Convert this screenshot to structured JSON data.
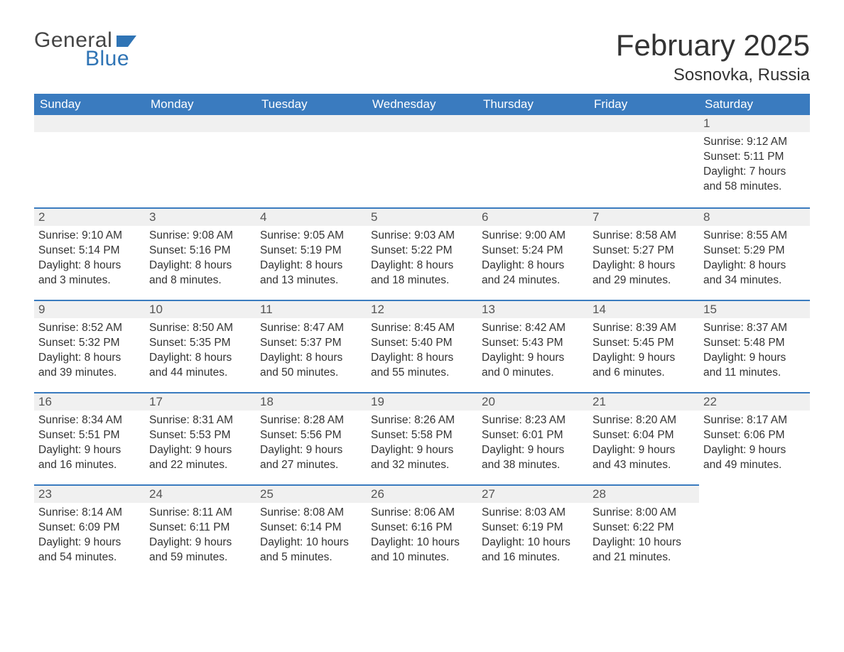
{
  "logo": {
    "text1": "General",
    "text2": "Blue",
    "flag_color": "#2f74b5"
  },
  "header": {
    "month_title": "February 2025",
    "location": "Sosnovka, Russia"
  },
  "style": {
    "header_bg": "#3a7bbf",
    "header_text": "#ffffff",
    "daynum_bg": "#f0f0f0",
    "daynum_border": "#3a7bbf",
    "body_text": "#333333",
    "title_fontsize": 42,
    "location_fontsize": 24,
    "weekday_fontsize": 17,
    "cell_fontsize": 15.5,
    "background": "#ffffff"
  },
  "weekdays": [
    "Sunday",
    "Monday",
    "Tuesday",
    "Wednesday",
    "Thursday",
    "Friday",
    "Saturday"
  ],
  "labels": {
    "sunrise": "Sunrise:",
    "sunset": "Sunset:",
    "daylight": "Daylight:"
  },
  "weeks": [
    [
      null,
      null,
      null,
      null,
      null,
      null,
      {
        "n": "1",
        "sunrise": "9:12 AM",
        "sunset": "5:11 PM",
        "daylight": "7 hours and 58 minutes."
      }
    ],
    [
      {
        "n": "2",
        "sunrise": "9:10 AM",
        "sunset": "5:14 PM",
        "daylight": "8 hours and 3 minutes."
      },
      {
        "n": "3",
        "sunrise": "9:08 AM",
        "sunset": "5:16 PM",
        "daylight": "8 hours and 8 minutes."
      },
      {
        "n": "4",
        "sunrise": "9:05 AM",
        "sunset": "5:19 PM",
        "daylight": "8 hours and 13 minutes."
      },
      {
        "n": "5",
        "sunrise": "9:03 AM",
        "sunset": "5:22 PM",
        "daylight": "8 hours and 18 minutes."
      },
      {
        "n": "6",
        "sunrise": "9:00 AM",
        "sunset": "5:24 PM",
        "daylight": "8 hours and 24 minutes."
      },
      {
        "n": "7",
        "sunrise": "8:58 AM",
        "sunset": "5:27 PM",
        "daylight": "8 hours and 29 minutes."
      },
      {
        "n": "8",
        "sunrise": "8:55 AM",
        "sunset": "5:29 PM",
        "daylight": "8 hours and 34 minutes."
      }
    ],
    [
      {
        "n": "9",
        "sunrise": "8:52 AM",
        "sunset": "5:32 PM",
        "daylight": "8 hours and 39 minutes."
      },
      {
        "n": "10",
        "sunrise": "8:50 AM",
        "sunset": "5:35 PM",
        "daylight": "8 hours and 44 minutes."
      },
      {
        "n": "11",
        "sunrise": "8:47 AM",
        "sunset": "5:37 PM",
        "daylight": "8 hours and 50 minutes."
      },
      {
        "n": "12",
        "sunrise": "8:45 AM",
        "sunset": "5:40 PM",
        "daylight": "8 hours and 55 minutes."
      },
      {
        "n": "13",
        "sunrise": "8:42 AM",
        "sunset": "5:43 PM",
        "daylight": "9 hours and 0 minutes."
      },
      {
        "n": "14",
        "sunrise": "8:39 AM",
        "sunset": "5:45 PM",
        "daylight": "9 hours and 6 minutes."
      },
      {
        "n": "15",
        "sunrise": "8:37 AM",
        "sunset": "5:48 PM",
        "daylight": "9 hours and 11 minutes."
      }
    ],
    [
      {
        "n": "16",
        "sunrise": "8:34 AM",
        "sunset": "5:51 PM",
        "daylight": "9 hours and 16 minutes."
      },
      {
        "n": "17",
        "sunrise": "8:31 AM",
        "sunset": "5:53 PM",
        "daylight": "9 hours and 22 minutes."
      },
      {
        "n": "18",
        "sunrise": "8:28 AM",
        "sunset": "5:56 PM",
        "daylight": "9 hours and 27 minutes."
      },
      {
        "n": "19",
        "sunrise": "8:26 AM",
        "sunset": "5:58 PM",
        "daylight": "9 hours and 32 minutes."
      },
      {
        "n": "20",
        "sunrise": "8:23 AM",
        "sunset": "6:01 PM",
        "daylight": "9 hours and 38 minutes."
      },
      {
        "n": "21",
        "sunrise": "8:20 AM",
        "sunset": "6:04 PM",
        "daylight": "9 hours and 43 minutes."
      },
      {
        "n": "22",
        "sunrise": "8:17 AM",
        "sunset": "6:06 PM",
        "daylight": "9 hours and 49 minutes."
      }
    ],
    [
      {
        "n": "23",
        "sunrise": "8:14 AM",
        "sunset": "6:09 PM",
        "daylight": "9 hours and 54 minutes."
      },
      {
        "n": "24",
        "sunrise": "8:11 AM",
        "sunset": "6:11 PM",
        "daylight": "9 hours and 59 minutes."
      },
      {
        "n": "25",
        "sunrise": "8:08 AM",
        "sunset": "6:14 PM",
        "daylight": "10 hours and 5 minutes."
      },
      {
        "n": "26",
        "sunrise": "8:06 AM",
        "sunset": "6:16 PM",
        "daylight": "10 hours and 10 minutes."
      },
      {
        "n": "27",
        "sunrise": "8:03 AM",
        "sunset": "6:19 PM",
        "daylight": "10 hours and 16 minutes."
      },
      {
        "n": "28",
        "sunrise": "8:00 AM",
        "sunset": "6:22 PM",
        "daylight": "10 hours and 21 minutes."
      },
      null
    ]
  ]
}
